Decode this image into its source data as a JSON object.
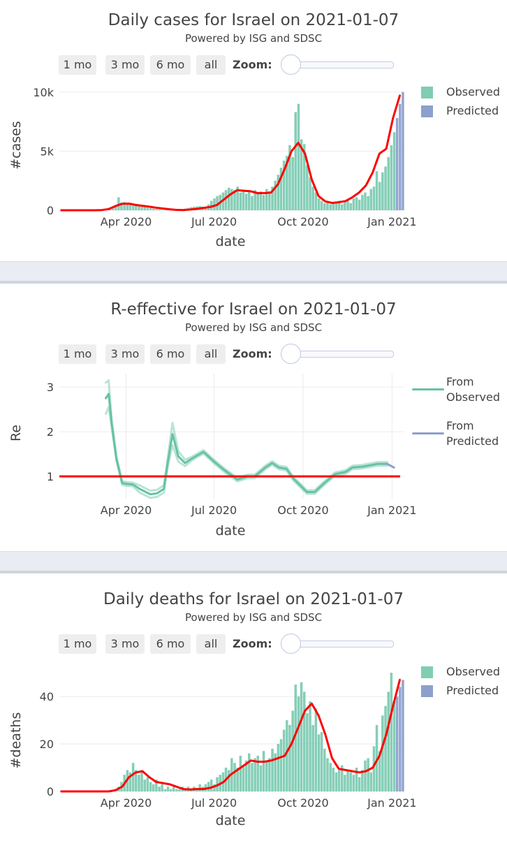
{
  "charts": [
    {
      "title": "Daily cases for Israel on 2021-01-07",
      "subtitle": "Powered by ISG and SDSC",
      "range_buttons": [
        "1 mo",
        "3 mo",
        "6 mo",
        "all"
      ],
      "zoom_label": "Zoom:",
      "ylabel": "#cases",
      "xlabel": "date",
      "legend": [
        "Observed",
        "Predicted"
      ]
    },
    {
      "title": "R-effective for Israel on 2021-01-07",
      "subtitle": "Powered by ISG and SDSC",
      "range_buttons": [
        "1 mo",
        "3 mo",
        "6 mo",
        "all"
      ],
      "zoom_label": "Zoom:",
      "ylabel": "Re",
      "xlabel": "date",
      "legend": [
        [
          "From",
          "Observed"
        ],
        [
          "From",
          "Predicted"
        ]
      ]
    },
    {
      "title": "Daily deaths for Israel on 2021-01-07",
      "subtitle": "Powered by ISG and SDSC",
      "range_buttons": [
        "1 mo",
        "3 mo",
        "6 mo",
        "all"
      ],
      "zoom_label": "Zoom:",
      "ylabel": "#deaths",
      "xlabel": "date",
      "legend": [
        "Observed",
        "Predicted"
      ]
    }
  ],
  "colors": {
    "observed": "#66c2a5",
    "predicted": "#8da0cb",
    "trend": "#ff0000",
    "threshold": "#ff0000"
  },
  "chart_data": [
    {
      "type": "bar",
      "title": "Daily cases for Israel on 2021-01-07",
      "xlabel": "date",
      "ylabel": "#cases",
      "xlim": [
        "2020-01-23",
        "2021-01-13"
      ],
      "ylim": [
        0,
        10400
      ],
      "x_ticks": [
        {
          "date": "2020-04-01",
          "label": "Apr 2020"
        },
        {
          "date": "2020-07-01",
          "label": "Jul 2020"
        },
        {
          "date": "2020-10-01",
          "label": "Oct 2020"
        },
        {
          "date": "2021-01-01",
          "label": "Jan 2021"
        }
      ],
      "y_ticks": [
        {
          "value": 0,
          "label": "0"
        },
        {
          "value": 5000,
          "label": "5k"
        },
        {
          "value": 10000,
          "label": "10k"
        }
      ],
      "bars": {
        "start_date": "2020-01-23",
        "step_days": 3,
        "predicted_from_index": 116,
        "values": [
          0,
          0,
          0,
          0,
          0,
          0,
          0,
          0,
          0,
          0,
          0,
          0,
          0,
          5,
          15,
          40,
          90,
          180,
          300,
          450,
          1100,
          650,
          700,
          600,
          500,
          430,
          400,
          350,
          300,
          260,
          220,
          180,
          140,
          110,
          70,
          40,
          20,
          15,
          10,
          20,
          30,
          60,
          100,
          140,
          200,
          260,
          300,
          320,
          350,
          300,
          300,
          500,
          800,
          1000,
          1200,
          1300,
          1500,
          1700,
          1900,
          1800,
          1700,
          2000,
          1500,
          1700,
          1400,
          1600,
          1200,
          1700,
          1500,
          1600,
          1300,
          1800,
          1600,
          2000,
          2500,
          3000,
          3600,
          4200,
          4600,
          5500,
          4500,
          8300,
          9000,
          6000,
          5600,
          3800,
          2800,
          2000,
          1500,
          1000,
          800,
          600,
          750,
          500,
          700,
          650,
          800,
          500,
          700,
          900,
          600,
          1000,
          1100,
          900,
          1300,
          1500,
          1200,
          1800,
          2000,
          3300,
          2400,
          3200,
          3700,
          4500,
          5500,
          6600,
          7800,
          9000,
          10000
        ]
      },
      "trend": {
        "start_date": "2020-01-25",
        "step_days": 7,
        "values": [
          0,
          0,
          0,
          0,
          0,
          0,
          20,
          100,
          350,
          550,
          560,
          450,
          380,
          300,
          220,
          150,
          80,
          30,
          20,
          60,
          120,
          200,
          280,
          450,
          900,
          1350,
          1700,
          1650,
          1600,
          1450,
          1450,
          1500,
          2200,
          3500,
          5000,
          5700,
          4800,
          2600,
          1200,
          750,
          620,
          680,
          780,
          1100,
          1500,
          2100,
          3200,
          4800,
          5200,
          7800,
          9700
        ]
      },
      "legend": [
        "Observed",
        "Predicted"
      ],
      "legend_position": "top-right"
    },
    {
      "type": "line",
      "title": "R-effective for Israel on 2021-01-07",
      "xlabel": "date",
      "ylabel": "Re",
      "xlim": [
        "2020-01-23",
        "2021-01-13"
      ],
      "ylim": [
        0.5,
        3.3
      ],
      "x_ticks": [
        {
          "date": "2020-04-01",
          "label": "Apr 2020"
        },
        {
          "date": "2020-07-01",
          "label": "Jul 2020"
        },
        {
          "date": "2020-10-01",
          "label": "Oct 2020"
        },
        {
          "date": "2021-01-01",
          "label": "Jan 2021"
        }
      ],
      "y_ticks": [
        {
          "value": 1,
          "label": "1"
        },
        {
          "value": 2,
          "label": "2"
        },
        {
          "value": 3,
          "label": "3"
        }
      ],
      "threshold": 1,
      "series": [
        {
          "name": "From Observed",
          "dates": [
            "2020-03-11",
            "2020-03-14",
            "2020-03-17",
            "2020-03-22",
            "2020-03-28",
            "2020-04-02",
            "2020-04-08",
            "2020-04-15",
            "2020-04-26",
            "2020-05-03",
            "2020-05-10",
            "2020-05-14",
            "2020-05-19",
            "2020-05-25",
            "2020-06-01",
            "2020-06-08",
            "2020-06-20",
            "2020-06-30",
            "2020-07-11",
            "2020-07-25",
            "2020-08-05",
            "2020-08-12",
            "2020-08-23",
            "2020-08-30",
            "2020-09-06",
            "2020-09-14",
            "2020-09-21",
            "2020-10-05",
            "2020-10-13",
            "2020-10-23",
            "2020-11-03",
            "2020-11-14",
            "2020-11-21",
            "2020-12-02",
            "2020-12-17",
            "2020-12-27"
          ],
          "values": [
            2.75,
            2.85,
            2.2,
            1.4,
            0.85,
            0.83,
            0.82,
            0.72,
            0.6,
            0.62,
            0.72,
            1.3,
            1.95,
            1.45,
            1.3,
            1.4,
            1.55,
            1.35,
            1.15,
            0.93,
            1.0,
            1.0,
            1.2,
            1.3,
            1.2,
            1.17,
            0.95,
            0.65,
            0.65,
            0.85,
            1.05,
            1.1,
            1.2,
            1.22,
            1.28,
            1.28
          ],
          "spread": [
            0.35,
            0.3,
            0.1,
            0.05,
            0.04,
            0.04,
            0.04,
            0.08,
            0.08,
            0.08,
            0.08,
            0.1,
            0.25,
            0.12,
            0.07,
            0.04,
            0.04,
            0.04,
            0.04,
            0.04,
            0.04,
            0.04,
            0.04,
            0.04,
            0.04,
            0.04,
            0.04,
            0.04,
            0.04,
            0.04,
            0.04,
            0.04,
            0.04,
            0.04,
            0.04,
            0.04
          ]
        },
        {
          "name": "From Predicted",
          "dates": [
            "2020-12-27",
            "2021-01-03"
          ],
          "values": [
            1.28,
            1.2
          ]
        }
      ],
      "legend": [
        "From Observed",
        "From Predicted"
      ],
      "legend_position": "top-right"
    },
    {
      "type": "bar",
      "title": "Daily deaths for Israel on 2021-01-07",
      "xlabel": "date",
      "ylabel": "#deaths",
      "xlim": [
        "2020-01-23",
        "2021-01-13"
      ],
      "ylim": [
        0,
        51.5
      ],
      "x_ticks": [
        {
          "date": "2020-04-01",
          "label": "Apr 2020"
        },
        {
          "date": "2020-07-01",
          "label": "Jul 2020"
        },
        {
          "date": "2020-10-01",
          "label": "Oct 2020"
        },
        {
          "date": "2021-01-01",
          "label": "Jan 2021"
        }
      ],
      "y_ticks": [
        {
          "value": 0,
          "label": "0"
        },
        {
          "value": 20,
          "label": "20"
        },
        {
          "value": 40,
          "label": "40"
        }
      ],
      "bars": {
        "start_date": "2020-01-23",
        "step_days": 3,
        "predicted_from_index": 116,
        "values": [
          0,
          0,
          0,
          0,
          0,
          0,
          0,
          0,
          0,
          0,
          0,
          0,
          0,
          0,
          0,
          0,
          0,
          0,
          0,
          1,
          2,
          4,
          7,
          9,
          8,
          12,
          9,
          7,
          9,
          5,
          6,
          4,
          3,
          5,
          2,
          3,
          1,
          2,
          1,
          2,
          1,
          1,
          2,
          1,
          2,
          1,
          2,
          1,
          3,
          2,
          3,
          4,
          5,
          3,
          6,
          7,
          8,
          10,
          9,
          14,
          12,
          10,
          15,
          11,
          13,
          16,
          12,
          14,
          15,
          11,
          17,
          13,
          14,
          18,
          16,
          20,
          22,
          26,
          30,
          28,
          34,
          45,
          40,
          46,
          42,
          33,
          38,
          28,
          35,
          24,
          25,
          18,
          14,
          12,
          10,
          8,
          9,
          11,
          7,
          9,
          8,
          7,
          10,
          6,
          9,
          13,
          14,
          8,
          19,
          28,
          17,
          32,
          36,
          42,
          50,
          38,
          40,
          44,
          47
        ]
      },
      "trend": {
        "start_date": "2020-01-25",
        "step_days": 7,
        "values": [
          0,
          0,
          0,
          0,
          0,
          0,
          0,
          0,
          0.5,
          2,
          6,
          8,
          8.5,
          6,
          4,
          3.5,
          3,
          2,
          1,
          0.8,
          1,
          1,
          1.5,
          2.5,
          4,
          7,
          9,
          11,
          13,
          12.5,
          12.5,
          13,
          14,
          15,
          20,
          27,
          34,
          37,
          32,
          24,
          14,
          9.5,
          9,
          8.5,
          8,
          8.5,
          10,
          15,
          24,
          36,
          47
        ]
      },
      "legend": [
        "Observed",
        "Predicted"
      ],
      "legend_position": "top-right"
    }
  ]
}
